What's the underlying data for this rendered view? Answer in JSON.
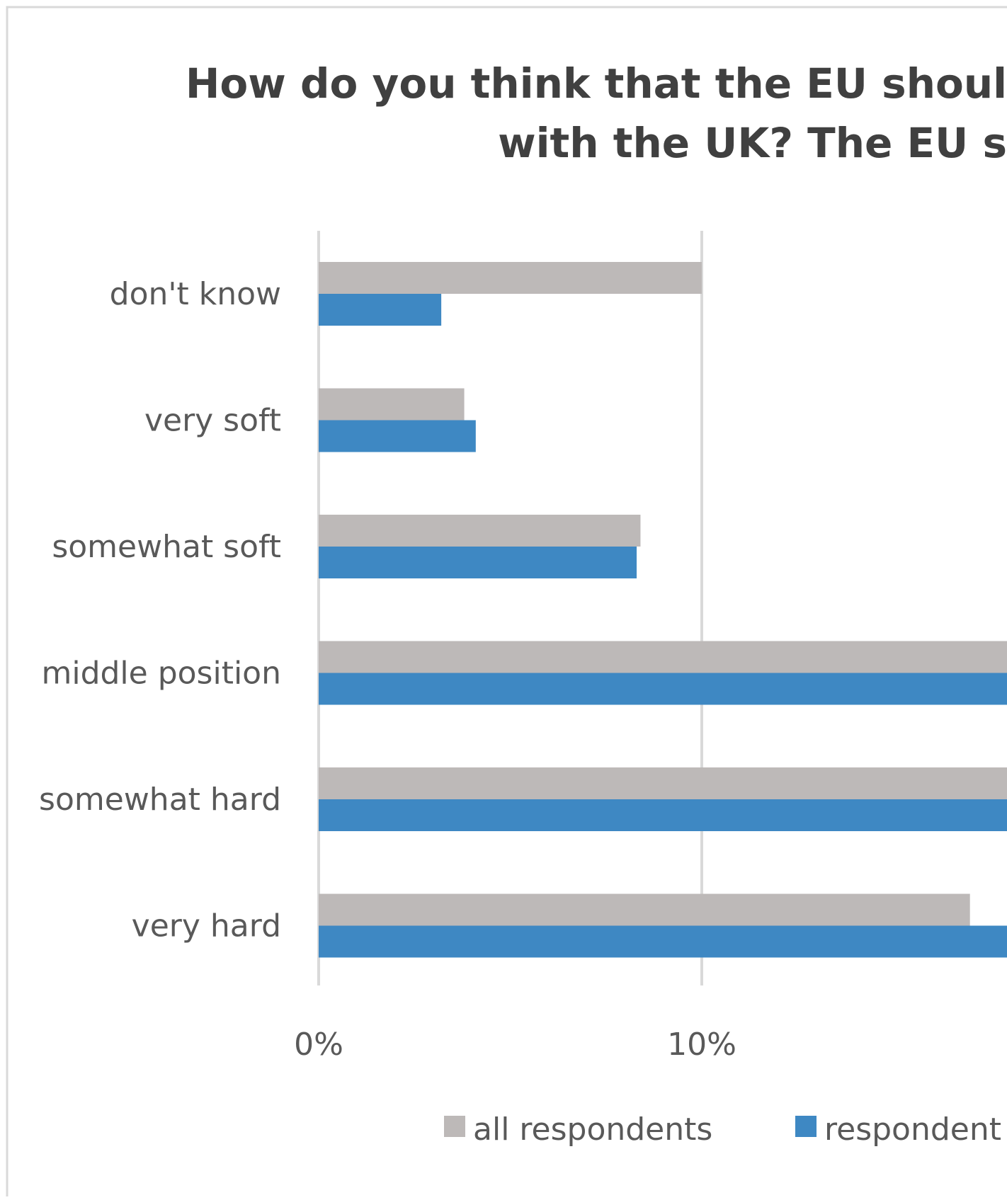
{
  "chart_data": {
    "type": "bar",
    "orientation": "horizontal",
    "title_lines": [
      "How do you think that the EU shoul",
      "with the UK?  The EU s"
    ],
    "categories": [
      "don't know",
      "very soft",
      "somewhat soft",
      "middle position",
      "somewhat hard",
      "very hard"
    ],
    "series": [
      {
        "name": "all respondents",
        "color": "#bdb9b8",
        "values": [
          10.0,
          3.8,
          8.4,
          18.5,
          18.5,
          17.0
        ]
      },
      {
        "name": "respondent",
        "color": "#3e88c3",
        "values": [
          3.2,
          4.1,
          8.3,
          18.5,
          18.5,
          18.5
        ]
      }
    ],
    "xlim": [
      0,
      18
    ],
    "x_ticks": [
      0,
      10
    ],
    "x_tick_labels": [
      "0%",
      "10%"
    ],
    "grid": true,
    "legend_position": "bottom"
  },
  "colors": {
    "title_text": "#404040",
    "axis_text": "#595959",
    "gridline": "#d9d9d9",
    "frame": "#d9d9d9"
  }
}
